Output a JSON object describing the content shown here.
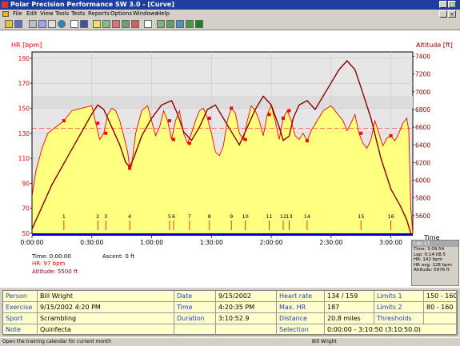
{
  "window": {
    "title": "Polar Precision Performance SW 3.0 - [Curve]"
  },
  "menu": [
    "File",
    "Edit",
    "View",
    "Tools",
    "Tests",
    "Reports",
    "Options",
    "Windows",
    "Help"
  ],
  "chart_data": {
    "type": "line",
    "ylabel_left": "HR [bpm]",
    "ylabel_right": "Altitude [ft]",
    "xlabel": "Time",
    "left_ticks": [
      190,
      170,
      150,
      130,
      110,
      90,
      70,
      50
    ],
    "right_ticks": [
      7400,
      7200,
      7000,
      6800,
      6600,
      6400,
      6200,
      6000,
      5800,
      5600
    ],
    "x_ticks": [
      "0:00:00",
      "0:30:00",
      "1:00:00",
      "1:30:00",
      "2:00:00",
      "2:30:00",
      "3:00:00"
    ],
    "ylim_left": [
      50,
      195
    ],
    "ylim_right": [
      5400,
      7450
    ],
    "xlim_minutes": [
      0,
      191
    ],
    "grid": true,
    "hr_avg": 134,
    "hr_limit_band": [
      150,
      160
    ],
    "lap_markers": [
      {
        "label": "1",
        "t": 16
      },
      {
        "label": "2",
        "t": 33
      },
      {
        "label": "3",
        "t": 37
      },
      {
        "label": "4",
        "t": 49
      },
      {
        "label": "5",
        "t": 69
      },
      {
        "label": "6",
        "t": 71
      },
      {
        "label": "7",
        "t": 79
      },
      {
        "label": "8",
        "t": 89
      },
      {
        "label": "9",
        "t": 100
      },
      {
        "label": "10",
        "t": 107
      },
      {
        "label": "11",
        "t": 119
      },
      {
        "label": "12",
        "t": 126
      },
      {
        "label": "13",
        "t": 129
      },
      {
        "label": "14",
        "t": 138
      },
      {
        "label": "15",
        "t": 165
      },
      {
        "label": "16",
        "t": 180
      }
    ],
    "series": [
      {
        "name": "HR [bpm]",
        "color": "#ff0000",
        "t": [
          0,
          2,
          5,
          8,
          12,
          16,
          20,
          25,
          30,
          32,
          34,
          36,
          38,
          40,
          42,
          44,
          46,
          48,
          49,
          50,
          52,
          55,
          58,
          60,
          62,
          64,
          66,
          68,
          70,
          72,
          74,
          76,
          78,
          80,
          82,
          84,
          86,
          88,
          90,
          92,
          94,
          96,
          98,
          100,
          102,
          104,
          106,
          108,
          110,
          112,
          114,
          116,
          118,
          120,
          122,
          124,
          126,
          128,
          130,
          132,
          134,
          136,
          138,
          140,
          143,
          146,
          150,
          153,
          156,
          158,
          160,
          162,
          164,
          166,
          168,
          170,
          172,
          174,
          176,
          178,
          180,
          182,
          184,
          186,
          188,
          189,
          190,
          191
        ],
        "v": [
          80,
          100,
          118,
          130,
          135,
          140,
          148,
          150,
          152,
          138,
          125,
          130,
          145,
          150,
          148,
          140,
          128,
          115,
          102,
          104,
          130,
          148,
          152,
          140,
          128,
          135,
          148,
          140,
          125,
          140,
          148,
          130,
          122,
          130,
          140,
          148,
          150,
          142,
          130,
          115,
          112,
          120,
          140,
          150,
          146,
          130,
          125,
          140,
          152,
          148,
          140,
          128,
          145,
          152,
          140,
          125,
          142,
          148,
          140,
          128,
          125,
          130,
          124,
          132,
          140,
          148,
          152,
          146,
          140,
          132,
          138,
          145,
          130,
          122,
          118,
          125,
          140,
          130,
          120,
          126,
          128,
          124,
          130,
          138,
          142,
          132,
          70,
          50
        ]
      },
      {
        "name": "Altitude [ft]",
        "color": "#8b0000",
        "t": [
          0,
          5,
          10,
          15,
          20,
          25,
          30,
          33,
          36,
          40,
          44,
          47,
          49,
          51,
          55,
          60,
          65,
          70,
          73,
          76,
          80,
          84,
          88,
          92,
          96,
          100,
          104,
          108,
          112,
          116,
          120,
          124,
          126,
          129,
          131,
          134,
          138,
          142,
          146,
          150,
          154,
          158,
          162,
          165,
          170,
          175,
          180,
          185,
          188,
          190
        ],
        "v": [
          5450,
          5700,
          5950,
          6150,
          6350,
          6550,
          6750,
          6850,
          6800,
          6600,
          6400,
          6200,
          6150,
          6250,
          6500,
          6700,
          6850,
          6900,
          6750,
          6550,
          6450,
          6600,
          6800,
          6850,
          6700,
          6550,
          6400,
          6600,
          6800,
          6950,
          6850,
          6600,
          6450,
          6500,
          6700,
          6850,
          6900,
          6800,
          6950,
          7100,
          7250,
          7350,
          7250,
          7050,
          6700,
          6250,
          5900,
          5700,
          5550,
          5400
        ]
      }
    ]
  },
  "cursor": {
    "time": "Time: 0:00:00",
    "hr": "HR: 97 bpm",
    "altitude": "Altitude: 5500 ft",
    "ascent": "Ascent: 0 ft"
  },
  "lap_panel": {
    "title": "Lap 17",
    "lines": [
      "Time: 3:09:54",
      "Lap: 0:14:08.5",
      "HR: 142 bpm",
      "HR avg: 128 bpm",
      "Altitude: 5976 ft"
    ]
  },
  "info": {
    "rows": [
      {
        "l1": "Person",
        "v1": "Bill Wright",
        "l2": "Date",
        "v2": "9/15/2002",
        "l3": "Heart rate",
        "v3": "134 / 159",
        "l4": "Limits 1",
        "v4": "150 - 160"
      },
      {
        "l1": "Exercise",
        "v1": "9/15/2002 4:20 PM",
        "l2": "Time",
        "v2": "4:20:35 PM",
        "l3": "Max. HR",
        "v3": "187",
        "l4": "Limits 2",
        "v4": "80 - 160"
      },
      {
        "l1": "Sport",
        "v1": "Scrambling",
        "l2": "Duration",
        "v2": "3:10:52.9",
        "l3": "Distance",
        "v3": "20.8 miles",
        "l4": "Thresholds",
        "v4": ""
      },
      {
        "l1": "Note",
        "v1": "Quinfecta",
        "l2": "",
        "v2": "",
        "l3": "Selection",
        "v3": "0:00:00 - 3:10:50 (3:10:50.0)",
        "l4": "",
        "v4": ""
      }
    ]
  },
  "status": {
    "left": "Open the training calendar for current month",
    "right": "Bill Wright"
  }
}
